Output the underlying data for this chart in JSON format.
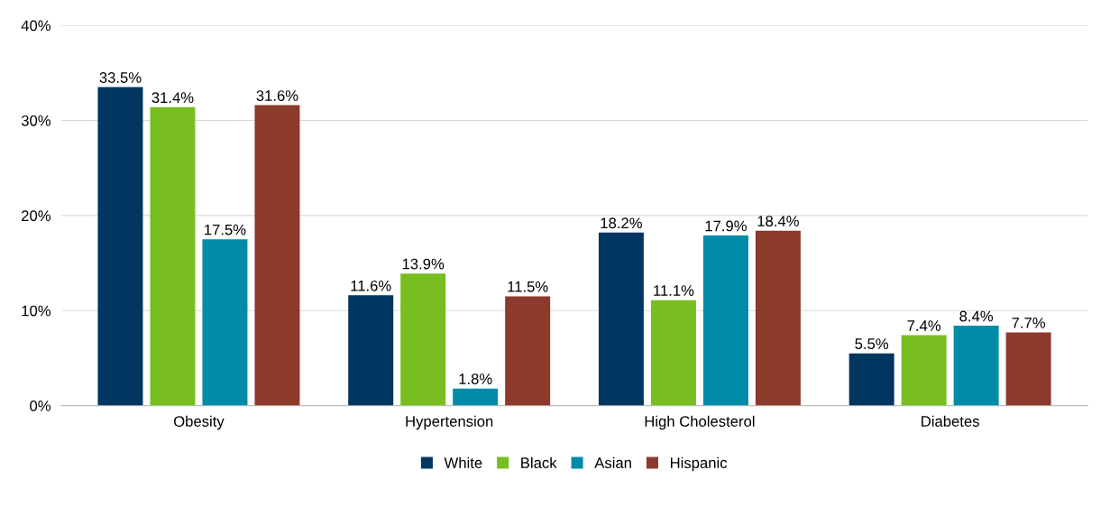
{
  "chart_data": {
    "type": "bar",
    "categories": [
      "Obesity",
      "Hypertension",
      "High Cholesterol",
      "Diabetes"
    ],
    "series": [
      {
        "name": "White",
        "color": "#003660",
        "values": [
          33.5,
          11.6,
          18.2,
          5.5
        ],
        "value_labels": [
          "33.5%",
          "11.6%",
          "18.2%",
          "5.5%"
        ]
      },
      {
        "name": "Black",
        "color": "#78be20",
        "values": [
          31.4,
          13.9,
          11.1,
          7.4
        ],
        "value_labels": [
          "31.4%",
          "13.9%",
          "11.1%",
          "7.4%"
        ]
      },
      {
        "name": "Asian",
        "color": "#008ba8",
        "values": [
          17.5,
          1.8,
          17.9,
          8.4
        ],
        "value_labels": [
          "17.5%",
          "1.8%",
          "17.9%",
          "8.4%"
        ]
      },
      {
        "name": "Hispanic",
        "color": "#8b3a2b",
        "values": [
          31.6,
          11.5,
          18.4,
          7.7
        ],
        "value_labels": [
          "31.6%",
          "11.5%",
          "18.4%",
          "7.7%"
        ]
      }
    ],
    "ylim": [
      0,
      40
    ],
    "yticks": [
      {
        "value": 0,
        "label": "0%"
      },
      {
        "value": 10,
        "label": "10%"
      },
      {
        "value": 20,
        "label": "20%"
      },
      {
        "value": 30,
        "label": "30%"
      },
      {
        "value": 40,
        "label": "40%"
      }
    ],
    "grid": "y",
    "legend": "bottom"
  }
}
